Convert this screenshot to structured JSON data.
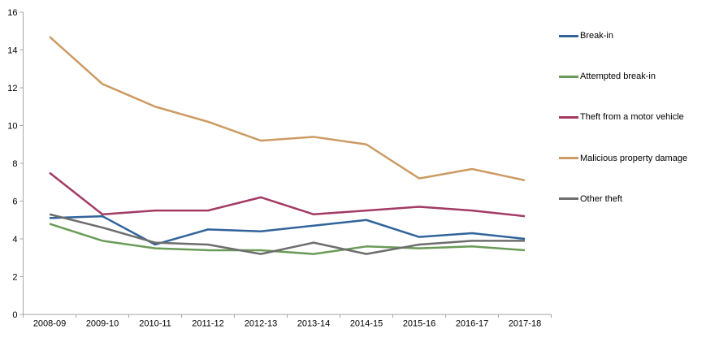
{
  "chart_data": {
    "type": "line",
    "categories": [
      "2008-09",
      "2009-10",
      "2010-11",
      "2011-12",
      "2012-13",
      "2013-14",
      "2014-15",
      "2015-16",
      "2016-17",
      "2017-18"
    ],
    "series": [
      {
        "name": "Break-in",
        "color": "#30649B",
        "values": [
          5.1,
          5.2,
          3.7,
          4.5,
          4.4,
          4.7,
          5.0,
          4.1,
          4.3,
          4.0
        ]
      },
      {
        "name": "Attempted break-in",
        "color": "#699B56",
        "values": [
          4.8,
          3.9,
          3.5,
          3.4,
          3.4,
          3.2,
          3.6,
          3.5,
          3.6,
          3.4
        ]
      },
      {
        "name": "Theft from a motor vehicle",
        "color": "#A23A64",
        "values": [
          7.5,
          5.3,
          5.5,
          5.5,
          6.2,
          5.3,
          5.5,
          5.7,
          5.5,
          5.2
        ]
      },
      {
        "name": "Malicious property damage",
        "color": "#CD9A63",
        "values": [
          14.7,
          12.2,
          11.0,
          10.2,
          9.2,
          9.4,
          9.0,
          7.2,
          7.7,
          7.1
        ]
      },
      {
        "name": "Other theft",
        "color": "#6D6D6D",
        "values": [
          5.3,
          4.6,
          3.8,
          3.7,
          3.2,
          3.8,
          3.2,
          3.7,
          3.9,
          3.9
        ]
      }
    ],
    "xlabel": "",
    "ylabel": "",
    "ylim": [
      0,
      16
    ],
    "ytick_step": 2,
    "grid": false,
    "legend_position": "right",
    "colors": {
      "axis": "#A6A6A6",
      "text": "#000000",
      "background": "#FFFFFF"
    }
  }
}
